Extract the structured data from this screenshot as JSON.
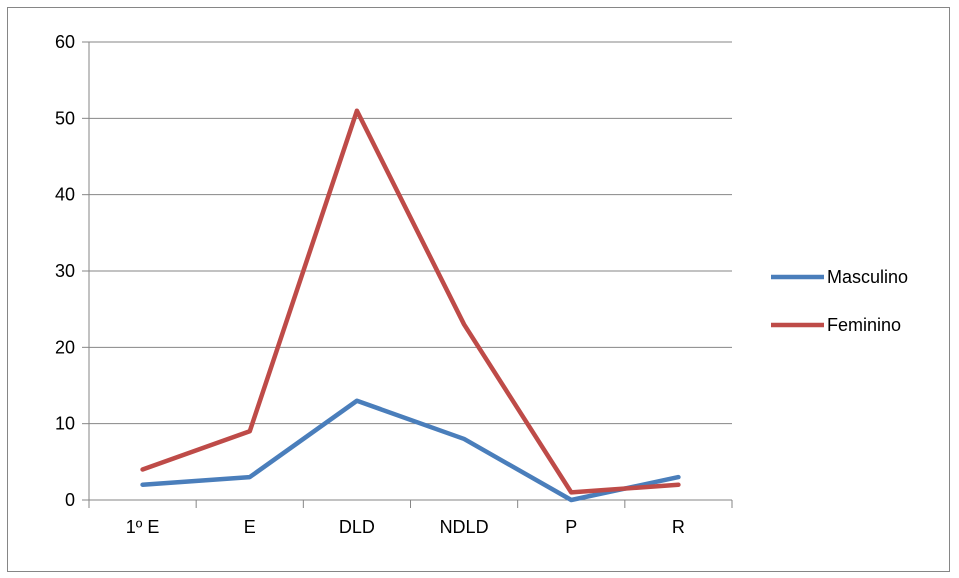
{
  "chart_data": {
    "type": "line",
    "categories": [
      "1º E",
      "E",
      "DLD",
      "NDLD",
      "P",
      "R"
    ],
    "ylim": [
      0,
      60
    ],
    "yticks": [
      0,
      10,
      20,
      30,
      40,
      50,
      60
    ],
    "grid": true,
    "legend_position": "right",
    "series": [
      {
        "name": "Masculino",
        "color": "#4a7ebb",
        "values": [
          2,
          3,
          13,
          8,
          0,
          3
        ]
      },
      {
        "name": "Feminino",
        "color": "#be4b48",
        "values": [
          4,
          9,
          51,
          23,
          1,
          2
        ]
      }
    ]
  }
}
